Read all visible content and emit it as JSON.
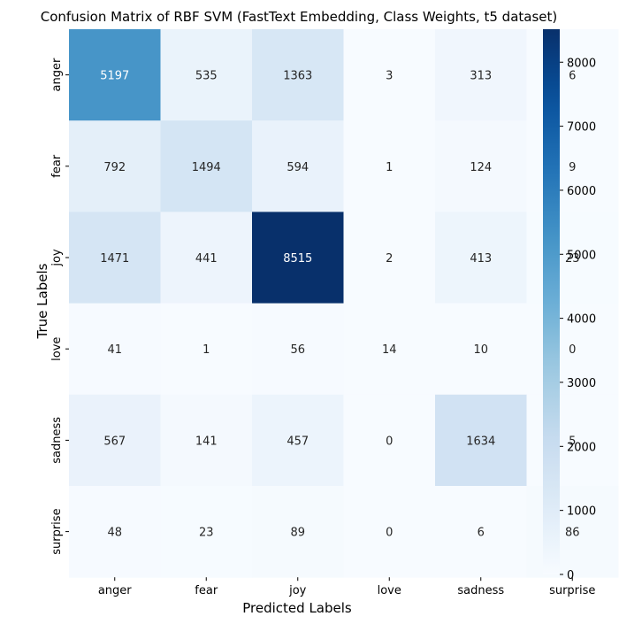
{
  "chart_data": {
    "type": "heatmap",
    "title": "Confusion Matrix of RBF SVM  (FastText Embedding, Class Weights, t5 dataset)",
    "xlabel": "Predicted Labels",
    "ylabel": "True Labels",
    "x_categories": [
      "anger",
      "fear",
      "joy",
      "love",
      "sadness",
      "surprise"
    ],
    "y_categories": [
      "anger",
      "fear",
      "joy",
      "love",
      "sadness",
      "surprise"
    ],
    "values": [
      [
        5197,
        535,
        1363,
        3,
        313,
        6
      ],
      [
        792,
        1494,
        594,
        1,
        124,
        9
      ],
      [
        1471,
        441,
        8515,
        2,
        413,
        23
      ],
      [
        41,
        1,
        56,
        14,
        10,
        0
      ],
      [
        567,
        141,
        457,
        0,
        1634,
        5
      ],
      [
        48,
        23,
        89,
        0,
        6,
        86
      ]
    ],
    "colormap": "Blues",
    "colorbar": {
      "range": [
        0,
        8515
      ],
      "ticks": [
        0,
        1000,
        2000,
        3000,
        4000,
        5000,
        6000,
        7000,
        8000
      ]
    }
  }
}
